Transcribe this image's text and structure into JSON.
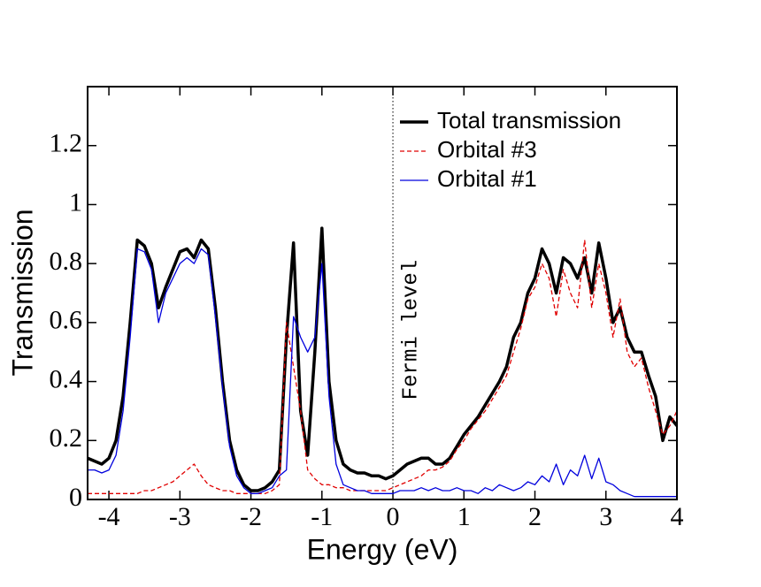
{
  "chart_data": {
    "type": "line",
    "xlabel": "Energy (eV)",
    "ylabel": "Transmission",
    "xlim": [
      -4.3,
      4
    ],
    "ylim": [
      0,
      1.4
    ],
    "xticks": [
      -4,
      -3,
      -2,
      -1,
      0,
      1,
      2,
      3,
      4
    ],
    "yticks": [
      0,
      0.2,
      0.4,
      0.6,
      0.8,
      1,
      1.2
    ],
    "legend": "upper right",
    "annotation": {
      "text": "Fermi level",
      "x": 0
    },
    "x": [
      -4.3,
      -4.2,
      -4.1,
      -4.0,
      -3.9,
      -3.8,
      -3.7,
      -3.6,
      -3.5,
      -3.4,
      -3.3,
      -3.2,
      -3.1,
      -3.0,
      -2.9,
      -2.8,
      -2.7,
      -2.6,
      -2.5,
      -2.4,
      -2.3,
      -2.2,
      -2.1,
      -2.0,
      -1.9,
      -1.8,
      -1.7,
      -1.6,
      -1.5,
      -1.4,
      -1.3,
      -1.2,
      -1.1,
      -1.0,
      -0.9,
      -0.8,
      -0.7,
      -0.6,
      -0.5,
      -0.4,
      -0.3,
      -0.2,
      -0.1,
      0,
      0.1,
      0.2,
      0.3,
      0.4,
      0.5,
      0.6,
      0.7,
      0.8,
      0.9,
      1.0,
      1.1,
      1.2,
      1.3,
      1.4,
      1.5,
      1.6,
      1.7,
      1.8,
      1.9,
      2.0,
      2.1,
      2.2,
      2.3,
      2.4,
      2.5,
      2.6,
      2.7,
      2.8,
      2.9,
      3.0,
      3.1,
      3.2,
      3.3,
      3.4,
      3.5,
      3.6,
      3.7,
      3.8,
      3.9,
      4.0
    ],
    "series": [
      {
        "name": "Total transmission",
        "color": "#000000",
        "width": 3.5,
        "dash": false,
        "values": [
          0.14,
          0.13,
          0.12,
          0.14,
          0.2,
          0.35,
          0.6,
          0.88,
          0.86,
          0.8,
          0.65,
          0.72,
          0.78,
          0.84,
          0.85,
          0.82,
          0.88,
          0.85,
          0.65,
          0.4,
          0.2,
          0.1,
          0.05,
          0.03,
          0.03,
          0.04,
          0.06,
          0.1,
          0.55,
          0.87,
          0.3,
          0.15,
          0.5,
          0.92,
          0.4,
          0.2,
          0.12,
          0.1,
          0.09,
          0.09,
          0.08,
          0.08,
          0.07,
          0.08,
          0.1,
          0.12,
          0.13,
          0.14,
          0.14,
          0.12,
          0.12,
          0.14,
          0.18,
          0.22,
          0.25,
          0.28,
          0.32,
          0.36,
          0.4,
          0.45,
          0.55,
          0.6,
          0.7,
          0.75,
          0.85,
          0.8,
          0.7,
          0.82,
          0.8,
          0.75,
          0.82,
          0.7,
          0.87,
          0.75,
          0.6,
          0.65,
          0.55,
          0.5,
          0.5,
          0.42,
          0.35,
          0.2,
          0.28,
          0.25
        ]
      },
      {
        "name": "Orbital #3",
        "color": "#e00000",
        "width": 1.3,
        "dash": true,
        "values": [
          0.02,
          0.02,
          0.02,
          0.02,
          0.02,
          0.02,
          0.02,
          0.02,
          0.03,
          0.03,
          0.04,
          0.05,
          0.06,
          0.08,
          0.1,
          0.12,
          0.08,
          0.05,
          0.04,
          0.03,
          0.03,
          0.02,
          0.02,
          0.02,
          0.02,
          0.02,
          0.03,
          0.05,
          0.6,
          0.45,
          0.3,
          0.1,
          0.07,
          0.05,
          0.05,
          0.04,
          0.04,
          0.03,
          0.03,
          0.03,
          0.03,
          0.03,
          0.03,
          0.04,
          0.05,
          0.06,
          0.07,
          0.08,
          0.1,
          0.1,
          0.11,
          0.13,
          0.17,
          0.2,
          0.24,
          0.27,
          0.3,
          0.34,
          0.38,
          0.42,
          0.5,
          0.58,
          0.68,
          0.72,
          0.8,
          0.75,
          0.62,
          0.78,
          0.7,
          0.65,
          0.88,
          0.65,
          0.8,
          0.7,
          0.55,
          0.68,
          0.5,
          0.45,
          0.48,
          0.38,
          0.3,
          0.22,
          0.25,
          0.3
        ]
      },
      {
        "name": "Orbital #1",
        "color": "#0000dd",
        "width": 1.3,
        "dash": false,
        "values": [
          0.1,
          0.1,
          0.09,
          0.1,
          0.15,
          0.3,
          0.55,
          0.85,
          0.84,
          0.78,
          0.6,
          0.7,
          0.75,
          0.8,
          0.82,
          0.8,
          0.85,
          0.83,
          0.62,
          0.38,
          0.18,
          0.08,
          0.04,
          0.02,
          0.02,
          0.03,
          0.04,
          0.08,
          0.1,
          0.62,
          0.55,
          0.5,
          0.55,
          0.8,
          0.35,
          0.12,
          0.05,
          0.04,
          0.03,
          0.03,
          0.02,
          0.02,
          0.02,
          0.02,
          0.03,
          0.03,
          0.03,
          0.04,
          0.03,
          0.04,
          0.03,
          0.03,
          0.04,
          0.03,
          0.03,
          0.02,
          0.04,
          0.03,
          0.05,
          0.04,
          0.03,
          0.04,
          0.06,
          0.05,
          0.08,
          0.06,
          0.12,
          0.05,
          0.1,
          0.08,
          0.15,
          0.07,
          0.14,
          0.06,
          0.05,
          0.03,
          0.02,
          0.01,
          0.01,
          0.01,
          0.01,
          0.01,
          0.01,
          0.01
        ]
      }
    ]
  }
}
